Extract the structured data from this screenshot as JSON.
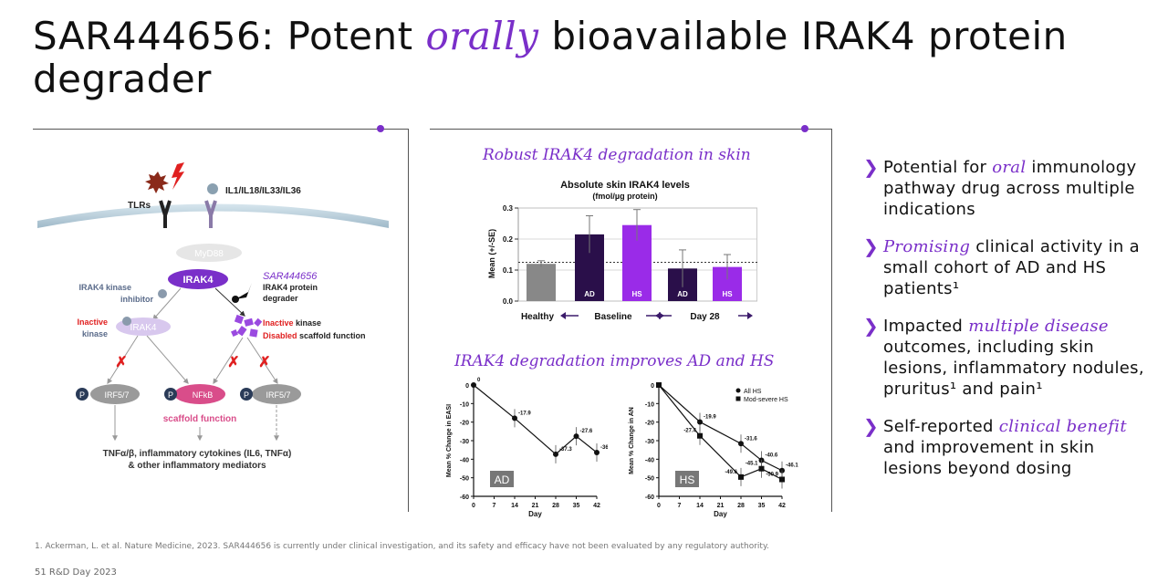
{
  "title": {
    "part1": "SAR444656: Potent ",
    "emph": "orally",
    "part2": " bioavailable IRAK4 protein degrader"
  },
  "pathway": {
    "tlrs": "TLRs",
    "ligands": "IL1/IL18/IL33/IL36",
    "myd88": "MyD88",
    "irak4": "IRAK4",
    "kinase_inhibitor": [
      "IRAK4 kinase",
      "inhibitor"
    ],
    "degrader_name": "SAR444656",
    "degrader_desc": [
      "IRAK4 protein",
      "degrader"
    ],
    "inactive_left": [
      "Inactive",
      "kinase"
    ],
    "inactive_left_node": "IRAK4",
    "inactive_right_1": "Inactive",
    "inactive_right_1b": " kinase",
    "inactive_right_2": "Disabled",
    "inactive_right_2b": " scaffold function",
    "irf_left": "IRF5/7",
    "nfkb": "NFkB",
    "irf_right": "IRF5/7",
    "p": "P",
    "scaffold": "scaffold function",
    "output_1": "TNFα/β, inflammatory cytokines (IL6, TNFα)",
    "output_2": "& other inflammatory mediators"
  },
  "panel2": {
    "heading1": "Robust IRAK4 degradation in skin",
    "heading2": "IRAK4 degradation improves AD and HS"
  },
  "bullets": [
    {
      "pre": "Potential for ",
      "emph": "oral",
      "post": " immunology pathway drug across multiple indications"
    },
    {
      "pre": "",
      "emph": "Promising",
      "post": " clinical activity in a small cohort of AD and HS patients¹"
    },
    {
      "pre": "Impacted ",
      "emph": "multiple disease",
      "post": " outcomes, including skin lesions, inflammatory nodules, pruritus¹ and pain¹"
    },
    {
      "pre": "Self-reported ",
      "emph": "clinical benefit",
      "post": " and improvement in skin lesions beyond dosing"
    }
  ],
  "bullet_chevron": "❯",
  "footnote": "1. Ackerman, L. et al. Nature Medicine, 2023.     SAR444656 is currently under clinical investigation, and its safety and efficacy have not been evaluated by any regulatory authority.",
  "footer": "51   R&D Day 2023",
  "chart_data": [
    {
      "type": "bar",
      "title": "Absolute skin IRAK4 levels",
      "subtitle": "(fmol/µg protein)",
      "ylabel": "Mean (+/-SE)",
      "ylim": [
        0,
        0.3
      ],
      "yticks": [
        "0.0",
        "0.1",
        "0.2",
        "0.3"
      ],
      "categories": [
        "Healthy",
        "AD",
        "HS",
        "AD",
        "HS"
      ],
      "values": [
        0.12,
        0.215,
        0.245,
        0.105,
        0.11
      ],
      "errors": [
        0.01,
        0.06,
        0.05,
        0.06,
        0.04
      ],
      "colors": [
        "#888888",
        "#2a0f4a",
        "#9a2be8",
        "#2a0f4a",
        "#9a2be8"
      ],
      "reference_line": 0.125,
      "groups": [
        {
          "label": "Healthy"
        },
        {
          "label": "Baseline"
        },
        {
          "label": "Day 28"
        }
      ]
    },
    {
      "type": "line",
      "label": "AD",
      "ylabel": "Mean % Change in EASI",
      "xlabel": "Day",
      "ylim": [
        -60,
        0
      ],
      "xticks": [
        0,
        7,
        14,
        21,
        28,
        35,
        42
      ],
      "yticks": [
        0,
        -10,
        -20,
        -30,
        -40,
        -50,
        -60
      ],
      "x": [
        0,
        14,
        28,
        35,
        42
      ],
      "y": [
        0,
        -17.9,
        -37.3,
        -27.6,
        -36.4
      ],
      "point_labels": [
        "0",
        "-17.9",
        "-37.3",
        "-27.6",
        "-36.4"
      ]
    },
    {
      "type": "line",
      "label": "HS",
      "ylabel": "Mean % Change in AN",
      "xlabel": "Day",
      "ylim": [
        -60,
        0
      ],
      "xticks": [
        0,
        7,
        14,
        21,
        28,
        35,
        42
      ],
      "yticks": [
        0,
        -10,
        -20,
        -30,
        -40,
        -50,
        -60
      ],
      "series": [
        {
          "name": "All HS",
          "x": [
            0,
            14,
            28,
            35,
            42
          ],
          "y": [
            0,
            -19.9,
            -31.6,
            -40.6,
            -46.1
          ],
          "point_labels": [
            "",
            "-19.9",
            "-31.6",
            "-40.6",
            "-46.1"
          ]
        },
        {
          "name": "Mod-severe HS",
          "x": [
            0,
            14,
            28,
            35,
            42
          ],
          "y": [
            0,
            -27.4,
            -49.6,
            -45.1,
            -50.9
          ],
          "point_labels": [
            "",
            "-27.4",
            "-49.6",
            "-45.1",
            "-50.9"
          ]
        }
      ]
    }
  ]
}
